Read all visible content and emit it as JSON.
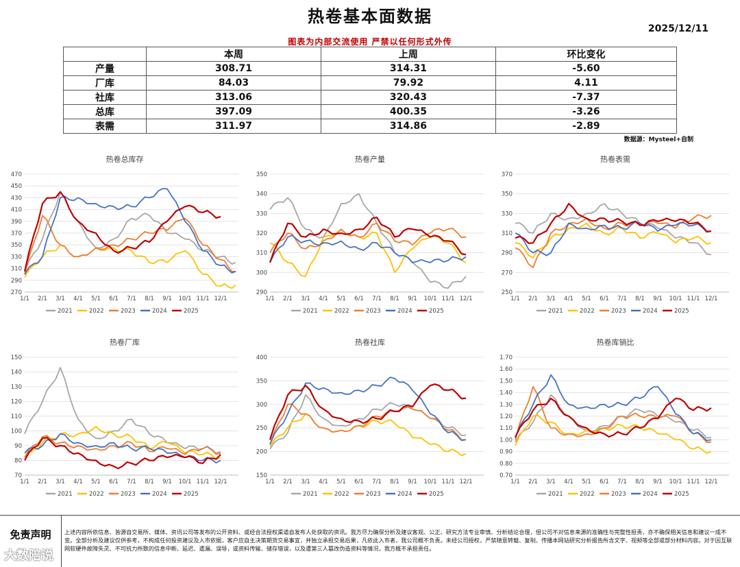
{
  "header": {
    "title": "热卷基本面数据",
    "date": "2025/12/11",
    "notice": "图表为内部交流使用 严禁以任何形式外传",
    "source": "数据源：Mysteel+自制"
  },
  "summary_table": {
    "columns": [
      "",
      "本周",
      "上周",
      "环比变化"
    ],
    "rows": [
      {
        "label": "产量",
        "this_week": "308.71",
        "last_week": "314.31",
        "change": "-5.60"
      },
      {
        "label": "厂库",
        "this_week": "84.03",
        "last_week": "79.92",
        "change": "4.11"
      },
      {
        "label": "社库",
        "this_week": "313.06",
        "last_week": "320.43",
        "change": "-7.37"
      },
      {
        "label": "总库",
        "this_week": "397.09",
        "last_week": "400.35",
        "change": "-3.26"
      },
      {
        "label": "表需",
        "this_week": "311.97",
        "last_week": "314.86",
        "change": "-2.89"
      }
    ]
  },
  "series_colors": {
    "2021": "#a6a6a6",
    "2022": "#ffc000",
    "2023": "#ed7d31",
    "2024": "#4472c4",
    "2025": "#c00000"
  },
  "x_ticks": [
    "1/1",
    "2/1",
    "3/1",
    "4/1",
    "5/1",
    "6/1",
    "7/1",
    "8/1",
    "9/1",
    "10/1",
    "11/1",
    "12/1"
  ],
  "chart_data": [
    {
      "type": "line",
      "title": "热卷总库存",
      "ylim": [
        270,
        470
      ],
      "yticks": [
        270,
        290,
        310,
        330,
        350,
        370,
        390,
        410,
        430,
        450,
        470
      ],
      "x": [
        "1/1",
        "2/1",
        "3/1",
        "4/1",
        "5/1",
        "6/1",
        "7/1",
        "8/1",
        "9/1",
        "10/1",
        "11/1",
        "12/1"
      ],
      "series": [
        {
          "name": "2021",
          "values": [
            305,
            360,
            440,
            390,
            345,
            360,
            395,
            400,
            370,
            360,
            340,
            330
          ],
          "end": 320
        },
        {
          "name": "2022",
          "values": [
            295,
            330,
            350,
            330,
            345,
            345,
            340,
            320,
            320,
            340,
            300,
            280
          ],
          "end": 282
        },
        {
          "name": "2023",
          "values": [
            300,
            400,
            350,
            330,
            345,
            350,
            360,
            370,
            375,
            395,
            350,
            325
          ],
          "end": 305
        },
        {
          "name": "2024",
          "values": [
            300,
            330,
            430,
            430,
            420,
            415,
            415,
            430,
            445,
            390,
            340,
            315
          ],
          "end": 305
        },
        {
          "name": "2025",
          "values": [
            305,
            420,
            440,
            390,
            370,
            340,
            345,
            355,
            390,
            415,
            405,
            398
          ]
        }
      ]
    },
    {
      "type": "line",
      "title": "热卷产量",
      "ylim": [
        290,
        350
      ],
      "yticks": [
        290,
        300,
        310,
        320,
        330,
        340,
        350
      ],
      "x": [
        "1/1",
        "2/1",
        "3/1",
        "4/1",
        "5/1",
        "6/1",
        "7/1",
        "8/1",
        "9/1",
        "10/1",
        "11/1",
        "12/1"
      ],
      "series": [
        {
          "name": "2021",
          "values": [
            332,
            338,
            322,
            318,
            335,
            340,
            325,
            310,
            305,
            295,
            292,
            298
          ]
        },
        {
          "name": "2022",
          "values": [
            315,
            305,
            298,
            318,
            322,
            318,
            320,
            300,
            312,
            318,
            315,
            305
          ]
        },
        {
          "name": "2023",
          "values": [
            310,
            320,
            312,
            316,
            322,
            318,
            325,
            316,
            314,
            320,
            322,
            318
          ]
        },
        {
          "name": "2024",
          "values": [
            305,
            318,
            316,
            315,
            316,
            312,
            315,
            310,
            305,
            305,
            306,
            308
          ]
        },
        {
          "name": "2025",
          "values": [
            305,
            325,
            318,
            322,
            320,
            322,
            328,
            318,
            322,
            318,
            316,
            309
          ]
        }
      ]
    },
    {
      "type": "line",
      "title": "热卷表需",
      "ylim": [
        250,
        370
      ],
      "yticks": [
        250,
        270,
        290,
        310,
        330,
        350,
        370
      ],
      "x": [
        "1/1",
        "2/1",
        "3/1",
        "4/1",
        "5/1",
        "6/1",
        "7/1",
        "8/1",
        "9/1",
        "10/1",
        "11/1",
        "12/1"
      ],
      "series": [
        {
          "name": "2021",
          "values": [
            320,
            310,
            330,
            325,
            330,
            340,
            330,
            320,
            315,
            305,
            300,
            288
          ]
        },
        {
          "name": "2022",
          "values": [
            300,
            285,
            305,
            315,
            320,
            310,
            315,
            305,
            310,
            300,
            305,
            300
          ]
        },
        {
          "name": "2023",
          "values": [
            295,
            275,
            310,
            320,
            325,
            315,
            320,
            318,
            320,
            315,
            325,
            328
          ]
        },
        {
          "name": "2024",
          "values": [
            310,
            290,
            290,
            320,
            315,
            318,
            315,
            320,
            312,
            318,
            318,
            312
          ]
        },
        {
          "name": "2025",
          "values": [
            305,
            300,
            320,
            340,
            325,
            325,
            322,
            318,
            322,
            322,
            320,
            312
          ]
        }
      ]
    },
    {
      "type": "line",
      "title": "热卷厂库",
      "ylim": [
        70,
        150
      ],
      "yticks": [
        70,
        80,
        90,
        100,
        110,
        120,
        130,
        140,
        150
      ],
      "x": [
        "1/1",
        "2/1",
        "3/1",
        "4/1",
        "5/1",
        "6/1",
        "7/1",
        "8/1",
        "9/1",
        "10/1",
        "11/1",
        "12/1"
      ],
      "series": [
        {
          "name": "2021",
          "values": [
            98,
            120,
            143,
            108,
            95,
            100,
            108,
            98,
            92,
            88,
            88,
            86
          ]
        },
        {
          "name": "2022",
          "values": [
            80,
            92,
            98,
            98,
            103,
            98,
            96,
            88,
            92,
            85,
            84,
            82
          ]
        },
        {
          "name": "2023",
          "values": [
            82,
            96,
            92,
            90,
            88,
            90,
            92,
            86,
            88,
            84,
            88,
            85
          ]
        },
        {
          "name": "2024",
          "values": [
            85,
            90,
            98,
            92,
            90,
            92,
            88,
            88,
            85,
            82,
            80,
            80
          ]
        },
        {
          "name": "2025",
          "values": [
            80,
            95,
            90,
            85,
            80,
            76,
            78,
            80,
            82,
            82,
            78,
            84
          ]
        }
      ]
    },
    {
      "type": "line",
      "title": "热卷社库",
      "ylim": [
        150,
        400
      ],
      "yticks": [
        150,
        200,
        250,
        300,
        350,
        400
      ],
      "x": [
        "1/1",
        "2/1",
        "3/1",
        "4/1",
        "5/1",
        "6/1",
        "7/1",
        "8/1",
        "9/1",
        "10/1",
        "11/1",
        "12/1"
      ],
      "series": [
        {
          "name": "2021",
          "values": [
            205,
            240,
            320,
            270,
            255,
            270,
            290,
            300,
            290,
            270,
            250,
            235
          ]
        },
        {
          "name": "2022",
          "values": [
            210,
            250,
            280,
            250,
            245,
            255,
            265,
            260,
            230,
            215,
            200,
            195
          ]
        },
        {
          "name": "2023",
          "values": [
            215,
            300,
            280,
            250,
            245,
            255,
            275,
            285,
            290,
            270,
            245,
            225
          ]
        },
        {
          "name": "2024",
          "values": [
            215,
            280,
            345,
            335,
            325,
            330,
            340,
            355,
            330,
            280,
            240,
            225
          ]
        },
        {
          "name": "2025",
          "values": [
            225,
            320,
            340,
            290,
            270,
            265,
            270,
            285,
            295,
            340,
            330,
            313
          ]
        }
      ]
    },
    {
      "type": "line",
      "title": "热卷库销比",
      "ylim": [
        0.7,
        1.7
      ],
      "yticks": [
        "0.70",
        "0.80",
        "0.90",
        "1.00",
        "1.10",
        "1.20",
        "1.30",
        "1.40",
        "1.50",
        "1.60",
        "1.70"
      ],
      "x": [
        "1/1",
        "2/1",
        "3/1",
        "4/1",
        "5/1",
        "6/1",
        "7/1",
        "8/1",
        "9/1",
        "10/1",
        "11/1",
        "12/1"
      ],
      "series": [
        {
          "name": "2021",
          "values": [
            0.98,
            1.15,
            1.38,
            1.2,
            1.08,
            1.12,
            1.2,
            1.25,
            1.2,
            1.15,
            1.08,
            1.02
          ]
        },
        {
          "name": "2022",
          "values": [
            0.95,
            1.2,
            1.15,
            1.05,
            1.08,
            1.1,
            1.12,
            1.1,
            1.05,
            1.0,
            0.92,
            0.9
          ]
        },
        {
          "name": "2023",
          "values": [
            1.0,
            1.45,
            1.1,
            1.05,
            1.05,
            1.1,
            1.2,
            1.2,
            1.18,
            1.2,
            1.05,
            0.98
          ]
        },
        {
          "name": "2024",
          "values": [
            1.02,
            1.3,
            1.55,
            1.3,
            1.28,
            1.3,
            1.3,
            1.35,
            1.45,
            1.22,
            1.05,
            1.0
          ]
        },
        {
          "name": "2025",
          "values": [
            1.02,
            1.25,
            1.35,
            1.2,
            1.1,
            1.05,
            1.05,
            1.1,
            1.18,
            1.35,
            1.25,
            1.27
          ]
        }
      ]
    }
  ],
  "disclaimer": {
    "label": "免责声明",
    "text": "上述内容所依信息、皆源自交易所、媒体、资讯公司等发布的公开资料、或经合法授权渠道自发布人处获取的资讯。我方尽力确保分析及建议客观、公正、研究方法专业审慎、分析结论合理，但公司不对信息来源的准确性与完整性担责，亦不确保相关信息和建议一成不变。全部分析及建议仅供参考，不构成任何投资建议及入市依据，客户应自主决策期货交易事宜，并独立承担交易后果，凡依此入市者，我公司概不负责。未经公司授权，严禁随意转载、复制、传播本网站研究分析报告所含文字、视频等全部或部分材料内容。对于因互联网软硬件故障失灵、不可抗力所致的信息中断、延迟、遗漏、误导，或资料传输、储存错误，以及遭第三人篡改伪造资料等情况，我方概不承担责任。"
  },
  "watermark": "大数陪说"
}
